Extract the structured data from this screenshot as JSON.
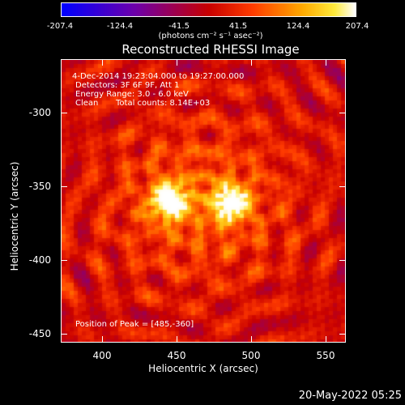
{
  "colorbar": {
    "ticks": [
      "-207.4",
      "-124.4",
      "-41.5",
      "41.5",
      "124.4",
      "207.4"
    ],
    "units": "(photons cm⁻² s⁻¹ asec⁻²)",
    "colors": [
      "#0000ff",
      "#6a00a8",
      "#cc0000",
      "#ff4000",
      "#ffa000",
      "#ffffff"
    ]
  },
  "title": "Reconstructed RHESSI Image",
  "info": {
    "time_range": "4-Dec-2014 19:23:04.000 to 19:27:00.000",
    "detectors": "Detectors: 3F 6F 9F, Att 1",
    "energy": "Energy Range: 3.0 - 6.0 keV",
    "method": "Clean",
    "counts": "Total counts: 8.14E+03",
    "peak": "Position of Peak = [485,-360]"
  },
  "axes": {
    "xlabel": "Heliocentric X (arcsec)",
    "ylabel": "Heliocentric Y (arcsec)",
    "xticks": [
      "400",
      "450",
      "500",
      "550"
    ],
    "yticks": [
      "-300",
      "-350",
      "-400",
      "-450"
    ],
    "xlim": [
      370,
      565
    ],
    "ylim": [
      -457,
      -263
    ]
  },
  "sources": [
    {
      "x": 443,
      "y": -359
    },
    {
      "x": 485,
      "y": -360
    }
  ],
  "timestamp": "20-May-2022 05:25"
}
